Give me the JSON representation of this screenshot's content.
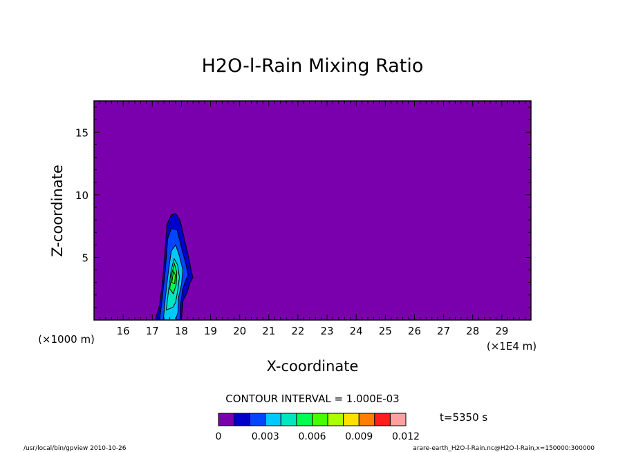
{
  "chart_data": {
    "type": "heatmap",
    "title": "H2O-l-Rain Mixing Ratio",
    "xlabel": "X-coordinate",
    "ylabel": "Z-coordinate",
    "x_unit_left": "(×1000 m)",
    "x_unit_right": "(×1E4 m)",
    "xlim": [
      150,
      300
    ],
    "ylim": [
      0,
      17.5
    ],
    "x_ticks": [
      160,
      170,
      180,
      190,
      200,
      210,
      220,
      230,
      240,
      250,
      260,
      270,
      280,
      290
    ],
    "x_tick_labels": [
      "16",
      "17",
      "18",
      "19",
      "20",
      "21",
      "22",
      "23",
      "24",
      "25",
      "26",
      "27",
      "28",
      "29"
    ],
    "y_ticks": [
      5,
      10,
      15
    ],
    "y_tick_labels": [
      "5",
      "10",
      "15"
    ],
    "contour_interval_text": "CONTOUR INTERVAL = 1.000E-03",
    "time_text": "t=5350 s",
    "levels": [
      0,
      0.001,
      0.002,
      0.003,
      0.004,
      0.005,
      0.006,
      0.007,
      0.008,
      0.009,
      0.01,
      0.011,
      0.012
    ],
    "level_labels": [
      {
        "value": 0,
        "text": "0"
      },
      {
        "value": 0.003,
        "text": "0.003"
      },
      {
        "value": 0.006,
        "text": "0.006"
      },
      {
        "value": 0.009,
        "text": "0.009"
      },
      {
        "value": 0.012,
        "text": "0.012"
      }
    ],
    "colors": [
      "#7b00ad",
      "#0000c8",
      "#0046ff",
      "#00c8ff",
      "#00e6be",
      "#00ff50",
      "#46ff00",
      "#aaff00",
      "#ffe100",
      "#ff7d00",
      "#ff1e1e",
      "#ffa0a0"
    ],
    "background_color": "#7b00ad",
    "feature": {
      "description_values": "rain cell between x≈172–188 (×1000 m), z≈0–8.5 km",
      "contours": [
        {
          "level": 0.001,
          "points": [
            [
              171,
              0
            ],
            [
              172.5,
              1.2
            ],
            [
              173.5,
              3
            ],
            [
              174.5,
              5.8
            ],
            [
              175,
              7.6
            ],
            [
              176.5,
              8.4
            ],
            [
              178,
              8.5
            ],
            [
              179.5,
              8.0
            ],
            [
              181,
              6.5
            ],
            [
              182.5,
              5.0
            ],
            [
              183.5,
              3.8
            ],
            [
              184,
              3.4
            ],
            [
              183,
              3.0
            ],
            [
              182,
              2.2
            ],
            [
              180.5,
              1.5
            ],
            [
              180,
              0
            ],
            [
              171,
              0
            ]
          ]
        },
        {
          "level": 0.002,
          "points": [
            [
              172.5,
              0
            ],
            [
              173.3,
              1.5
            ],
            [
              174.5,
              4
            ],
            [
              175.3,
              6.5
            ],
            [
              176.5,
              7.3
            ],
            [
              178.5,
              7.2
            ],
            [
              180,
              5.8
            ],
            [
              181.5,
              4.5
            ],
            [
              182.3,
              3.6
            ],
            [
              181.5,
              3.2
            ],
            [
              180.5,
              2.5
            ],
            [
              179.7,
              1.2
            ],
            [
              179.5,
              0
            ],
            [
              172.5,
              0
            ]
          ]
        },
        {
          "level": 0.003,
          "points": [
            [
              173.8,
              0
            ],
            [
              174.5,
              1.8
            ],
            [
              175.5,
              3.8
            ],
            [
              176.5,
              5.5
            ],
            [
              178,
              6.0
            ],
            [
              179.2,
              5.2
            ],
            [
              180.5,
              4.0
            ],
            [
              180,
              2.8
            ],
            [
              179,
              1.8
            ],
            [
              178.8,
              0.6
            ],
            [
              178,
              0
            ],
            [
              173.8,
              0
            ]
          ]
        },
        {
          "level": 0.004,
          "points": [
            [
              174.8,
              0.8
            ],
            [
              175.5,
              2.2
            ],
            [
              176.5,
              4.0
            ],
            [
              177.5,
              4.9
            ],
            [
              178.7,
              4.4
            ],
            [
              179.3,
              3.4
            ],
            [
              178.7,
              2.3
            ],
            [
              178,
              1.4
            ],
            [
              177,
              1.0
            ],
            [
              174.8,
              0.8
            ]
          ]
        },
        {
          "level": 0.005,
          "points": [
            [
              176,
              2.5
            ],
            [
              176.8,
              3.8
            ],
            [
              177.6,
              4.5
            ],
            [
              178.4,
              3.8
            ],
            [
              178.2,
              2.8
            ],
            [
              177.2,
              2.1
            ],
            [
              176,
              2.5
            ]
          ]
        },
        {
          "level": 0.006,
          "points": [
            [
              176.7,
              3.0
            ],
            [
              177.3,
              3.9
            ],
            [
              177.9,
              3.6
            ],
            [
              177.7,
              2.9
            ],
            [
              176.7,
              3.0
            ]
          ]
        }
      ]
    },
    "grid": false
  },
  "footer": {
    "left_text": "/usr/local/bin/gpview  2010-10-26",
    "right_text": "arare-earth_H2O-l-Rain.nc@H2O-l-Rain,x=150000:300000"
  }
}
